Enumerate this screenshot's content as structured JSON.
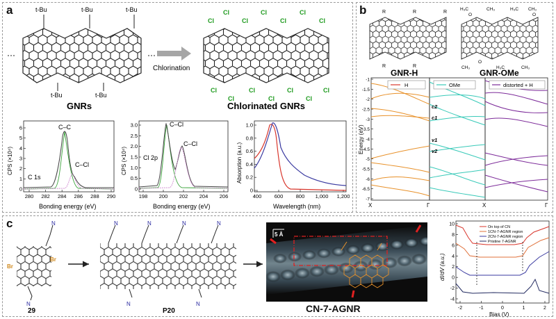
{
  "panel_a": {
    "label": "a",
    "tbu": "t-Bu",
    "cl": "Cl",
    "arrow_text": "Chlorination",
    "title_left": "GNRs",
    "title_right": "Chlorinated GNRs",
    "xps_c1s": {
      "ylabel": "CPS (×10⁴)",
      "xlabel": "Bonding energy (eV)",
      "xticks": [
        "280",
        "282",
        "284",
        "286",
        "288",
        "290"
      ],
      "yticks": [
        "0",
        "1",
        "2",
        "3",
        "4",
        "5",
        "6"
      ],
      "tag": "C 1s",
      "ann1": "C–C",
      "ann2": "C–Cl"
    },
    "xps_cl2p": {
      "ylabel": "CPS (×10⁴)",
      "xlabel": "Bonding energy (eV)",
      "xticks": [
        "198",
        "200",
        "202",
        "204",
        "206"
      ],
      "yticks": [
        "0",
        "0.5",
        "1.0",
        "1.5",
        "2.0",
        "2.5",
        "3.0"
      ],
      "tag": "Cl 2p",
      "ann1": "C–Cl",
      "ann2": "C–Cl"
    },
    "absorption": {
      "ylabel": "Absorption (a.u.)",
      "xlabel": "Wavelength (nm)",
      "xticks": [
        "400",
        "600",
        "800",
        "1,000",
        "1,200"
      ],
      "yticks": [
        "0",
        "0.2",
        "0.4",
        "0.6",
        "0.8",
        "1.0"
      ]
    }
  },
  "panel_b": {
    "label": "b",
    "title_left": "GNR-H",
    "title_right": "GNR-OMe",
    "r": "R",
    "ome1": "CH₃",
    "ome2": "H₃C",
    "ome3": "O",
    "ylabel": "Energy (eV)",
    "yticks": [
      "-1",
      "-1.5",
      "-2",
      "-2.5",
      "-3",
      "-3.5",
      "-4",
      "-4.5",
      "-5",
      "-5.5",
      "-6",
      "-6.5",
      "-7"
    ],
    "xticks": [
      "X",
      "Γ",
      "X",
      "Γ"
    ],
    "legend1": "H",
    "legend2": "OMe",
    "legend3": "distorted + H",
    "bands": [
      "c2",
      "c1",
      "v1",
      "v2"
    ]
  },
  "panel_c": {
    "label": "c",
    "monomer": "29",
    "polymer": "P20",
    "br": "Br",
    "n": "N",
    "stm_title": "CN-7-AGNR",
    "scale": "5 Å",
    "sts": {
      "ylabel": "dI/dV (a.u.)",
      "xlabel": "Bias (V)",
      "xticks": [
        "-2",
        "-1",
        "0",
        "1",
        "2"
      ],
      "yticks": [
        "-4",
        "-2",
        "0",
        "2",
        "4",
        "6",
        "8",
        "10"
      ],
      "legend": [
        "On top of CN",
        "1CN-7-AGNR region",
        "2CN-7-AGNR region",
        "Pristine 7-AGNR"
      ]
    }
  },
  "colors": {
    "green_cl": "#1e9a1e",
    "orange_band": "#e8912a",
    "cyan_band": "#37c9b8",
    "purple_band": "#7c2a99",
    "red_line": "#d8342a",
    "blue_line": "#3a3aa0"
  },
  "chart_data": [
    {
      "type": "line",
      "title": "",
      "xlabel": "Bonding energy (eV)",
      "ylabel": "CPS (×10⁴)",
      "xlim": [
        279,
        290
      ],
      "ylim": [
        0,
        6.3
      ],
      "series": [
        {
          "values": [
            [
              280,
              0.3
            ],
            [
              282,
              0.35
            ],
            [
              283,
              0.7
            ],
            [
              284,
              3.2
            ],
            [
              284.5,
              5.4
            ],
            [
              285,
              4.6
            ],
            [
              285.7,
              2.3
            ],
            [
              286.3,
              1.1
            ],
            [
              287,
              0.5
            ],
            [
              288,
              0.35
            ],
            [
              290,
              0.3
            ]
          ]
        }
      ]
    },
    {
      "type": "line",
      "title": "",
      "xlabel": "Bonding energy (eV)",
      "ylabel": "CPS (×10⁴)",
      "xlim": [
        197,
        206
      ],
      "ylim": [
        0,
        3.2
      ],
      "series": [
        {
          "values": [
            [
              197,
              0.2
            ],
            [
              199,
              0.35
            ],
            [
              199.7,
              1.6
            ],
            [
              200.1,
              3.0
            ],
            [
              200.6,
              2.2
            ],
            [
              201.1,
              1.1
            ],
            [
              201.7,
              2.0
            ],
            [
              202.3,
              1.3
            ],
            [
              203,
              0.5
            ],
            [
              204,
              0.3
            ],
            [
              206,
              0.25
            ]
          ]
        }
      ]
    },
    {
      "type": "line",
      "title": "",
      "xlabel": "Wavelength (nm)",
      "ylabel": "Absorption (a.u.)",
      "xlim": [
        400,
        1200
      ],
      "ylim": [
        0,
        1.05
      ],
      "series": [
        {
          "values": [
            [
              400,
              0.45
            ],
            [
              480,
              0.6
            ],
            [
              540,
              0.85
            ],
            [
              560,
              1.0
            ],
            [
              610,
              0.9
            ],
            [
              660,
              0.35
            ],
            [
              720,
              0.08
            ],
            [
              800,
              0.02
            ],
            [
              1200,
              0.01
            ]
          ]
        },
        {
          "values": [
            [
              400,
              0.32
            ],
            [
              500,
              0.5
            ],
            [
              560,
              0.8
            ],
            [
              600,
              1.0
            ],
            [
              650,
              0.9
            ],
            [
              720,
              0.6
            ],
            [
              800,
              0.4
            ],
            [
              900,
              0.25
            ],
            [
              1000,
              0.16
            ],
            [
              1200,
              0.1
            ]
          ]
        }
      ]
    },
    {
      "type": "line",
      "title": "",
      "xlabel": "Bias (V)",
      "ylabel": "dI/dV (a.u.)",
      "xlim": [
        -2,
        2
      ],
      "ylim": [
        -4,
        10
      ],
      "series": [
        {
          "name": "On top of CN",
          "values": [
            [
              -2,
              9.5
            ],
            [
              -1.7,
              8.5
            ],
            [
              -1.4,
              6.5
            ],
            [
              -1,
              6.2
            ],
            [
              0,
              6.0
            ],
            [
              1.2,
              6.0
            ],
            [
              1.6,
              7.0
            ],
            [
              2,
              8.5
            ]
          ]
        },
        {
          "name": "1CN-7-AGNR region",
          "values": [
            [
              -2,
              6
            ],
            [
              -1.5,
              4
            ],
            [
              -1.2,
              2.9
            ],
            [
              0,
              2.8
            ],
            [
              1.2,
              2.9
            ],
            [
              1.6,
              4.5
            ],
            [
              2,
              6.5
            ]
          ]
        },
        {
          "name": "2CN-7-AGNR region",
          "values": [
            [
              -2,
              2.5
            ],
            [
              -1.5,
              1.0
            ],
            [
              -1,
              -0.1
            ],
            [
              0,
              -0.2
            ],
            [
              1.2,
              -0.1
            ],
            [
              1.6,
              2.2
            ],
            [
              2,
              4.5
            ]
          ]
        },
        {
          "name": "Pristine 7-AGNR",
          "values": [
            [
              -2,
              -1.5
            ],
            [
              -1.6,
              -3.0
            ],
            [
              -0.9,
              -3.3
            ],
            [
              0,
              -3.3
            ],
            [
              1.4,
              -3.2
            ],
            [
              1.6,
              -1.0
            ],
            [
              1.8,
              -2.5
            ],
            [
              2,
              -3.0
            ]
          ]
        }
      ]
    }
  ]
}
